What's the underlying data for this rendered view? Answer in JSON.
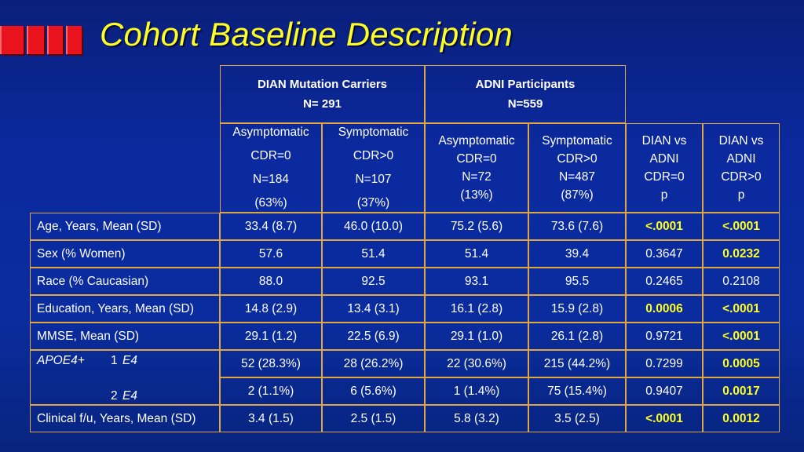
{
  "title": "Cohort Baseline Description",
  "colors": {
    "accent_text": "#ffff22",
    "bars": "#e8131d",
    "grid": "#e0a640"
  },
  "groups": {
    "dian": {
      "name": "DIAN Mutation Carriers",
      "n": "N= 291"
    },
    "adni": {
      "name": "ADNI Participants",
      "n": "N=559"
    }
  },
  "subheaders": [
    [
      "Asymptomatic",
      "CDR=0",
      "N=184",
      "(63%)"
    ],
    [
      "Symptomatic",
      "CDR>0",
      "N=107",
      "(37%)"
    ],
    [
      "Asymptomatic",
      "CDR=0",
      "N=72",
      "(13%)"
    ],
    [
      "Symptomatic",
      "CDR>0",
      "N=487",
      "(87%)"
    ],
    [
      "DIAN vs",
      "ADNI",
      "CDR=0",
      "p"
    ],
    [
      "DIAN vs",
      "ADNI",
      "CDR>0",
      "p"
    ]
  ],
  "rows": [
    {
      "label": "Age, Years, Mean (SD)",
      "values": [
        "33.4 (8.7)",
        "46.0 (10.0)",
        "75.2 (5.6)",
        "73.6 (7.6)",
        "<.0001",
        "<.0001"
      ],
      "highlight": [
        4,
        5
      ]
    },
    {
      "label": "Sex (% Women)",
      "values": [
        "57.6",
        "51.4",
        "51.4",
        "39.4",
        "0.3647",
        "0.0232"
      ],
      "highlight": [
        5
      ]
    },
    {
      "label": "Race (% Caucasian)",
      "values": [
        "88.0",
        "92.5",
        "93.1",
        "95.5",
        "0.2465",
        "0.2108"
      ],
      "highlight": []
    },
    {
      "label": "Education, Years, Mean (SD)",
      "values": [
        "14.8 (2.9)",
        "13.4 (3.1)",
        "16.1 (2.8)",
        "15.9 (2.8)",
        "0.0006",
        "<.0001"
      ],
      "highlight": [
        4,
        5
      ]
    },
    {
      "label": "MMSE, Mean (SD)",
      "values": [
        "29.1 (1.2)",
        "22.5 (6.9)",
        "29.1 (1.0)",
        "26.1 (2.8)",
        "0.9721",
        "<.0001"
      ],
      "highlight": [
        5
      ]
    },
    {
      "label": "",
      "values": [
        "52 (28.3%)",
        "28 (26.2%)",
        "22 (30.6%)",
        "215 (44.2%)",
        "0.7299",
        "0.0005"
      ],
      "highlight": [
        5
      ]
    },
    {
      "label": "",
      "values": [
        "2 (1.1%)",
        "6 (5.6%)",
        "1 (1.4%)",
        "75 (15.4%)",
        "0.9407",
        "0.0017"
      ],
      "highlight": [
        5
      ]
    },
    {
      "label": "Clinical f/u, Years, Mean (SD)",
      "values": [
        "3.4 (1.5)",
        "2.5 (1.5)",
        "5.8 (3.2)",
        "3.5 (2.5)",
        "<.0001",
        "0.0012"
      ],
      "highlight": [
        4,
        5
      ]
    }
  ],
  "apoe": {
    "name": "APOE4+",
    "one": "1",
    "two": "2",
    "allele": "E4"
  }
}
